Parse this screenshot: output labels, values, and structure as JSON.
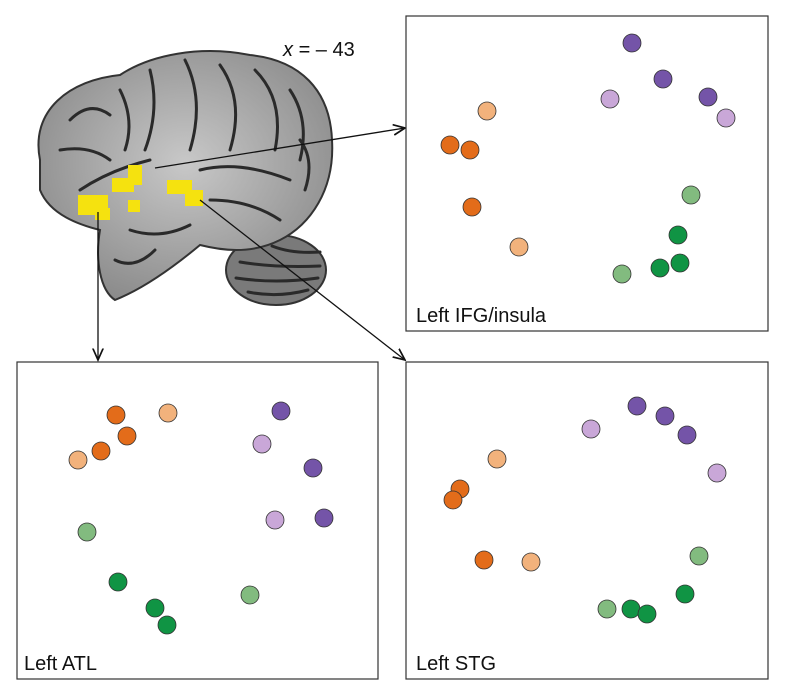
{
  "brain": {
    "coordinate_variable": "x",
    "coordinate_value": "= – 43"
  },
  "panels": [
    {
      "label": "Left IFG/insula"
    },
    {
      "label": "Left ATL"
    },
    {
      "label": "Left STG"
    }
  ]
}
